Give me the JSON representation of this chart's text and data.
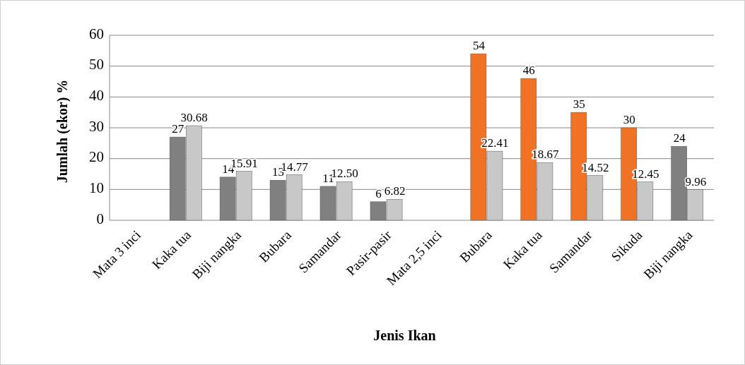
{
  "chart_data": {
    "type": "bar",
    "xlabel": "Jenis Ikan",
    "ylabel": "Jumlah (ekor) %",
    "categories": [
      "Mata 3 inci",
      "Kaka tua",
      "Biji nangka",
      "Bubara",
      "Samandar",
      "Pasir-pasir",
      "Mata 2,5 inci",
      "Bubara",
      "Kaka tua",
      "Samandar",
      "Sikuda",
      "Biji nangka"
    ],
    "series": [
      {
        "colors": [
          null,
          "#808080",
          "#808080",
          "#808080",
          "#808080",
          "#808080",
          null,
          "#f07224",
          "#f07224",
          "#f07224",
          "#f07224",
          "#808080"
        ],
        "values": [
          null,
          27,
          14,
          13,
          11,
          6,
          null,
          54,
          46,
          35,
          30,
          24
        ],
        "value_labels": [
          null,
          "27",
          "14",
          "13",
          "11",
          "6",
          null,
          "54",
          "46",
          "35",
          "30",
          "24"
        ]
      },
      {
        "color": "#c8c8c8",
        "values": [
          null,
          30.68,
          15.91,
          14.77,
          12.5,
          6.82,
          null,
          22.41,
          18.67,
          14.52,
          12.45,
          9.96
        ],
        "value_labels": [
          null,
          "30.68",
          "15.91",
          "14.77",
          "12.50",
          "6.82",
          null,
          "22.41",
          "18.67",
          "14.52",
          "12.45",
          "9.96"
        ]
      }
    ],
    "ylim": [
      0,
      60
    ],
    "yticks": [
      0,
      10,
      20,
      30,
      40,
      50,
      60
    ],
    "grid": "y"
  }
}
